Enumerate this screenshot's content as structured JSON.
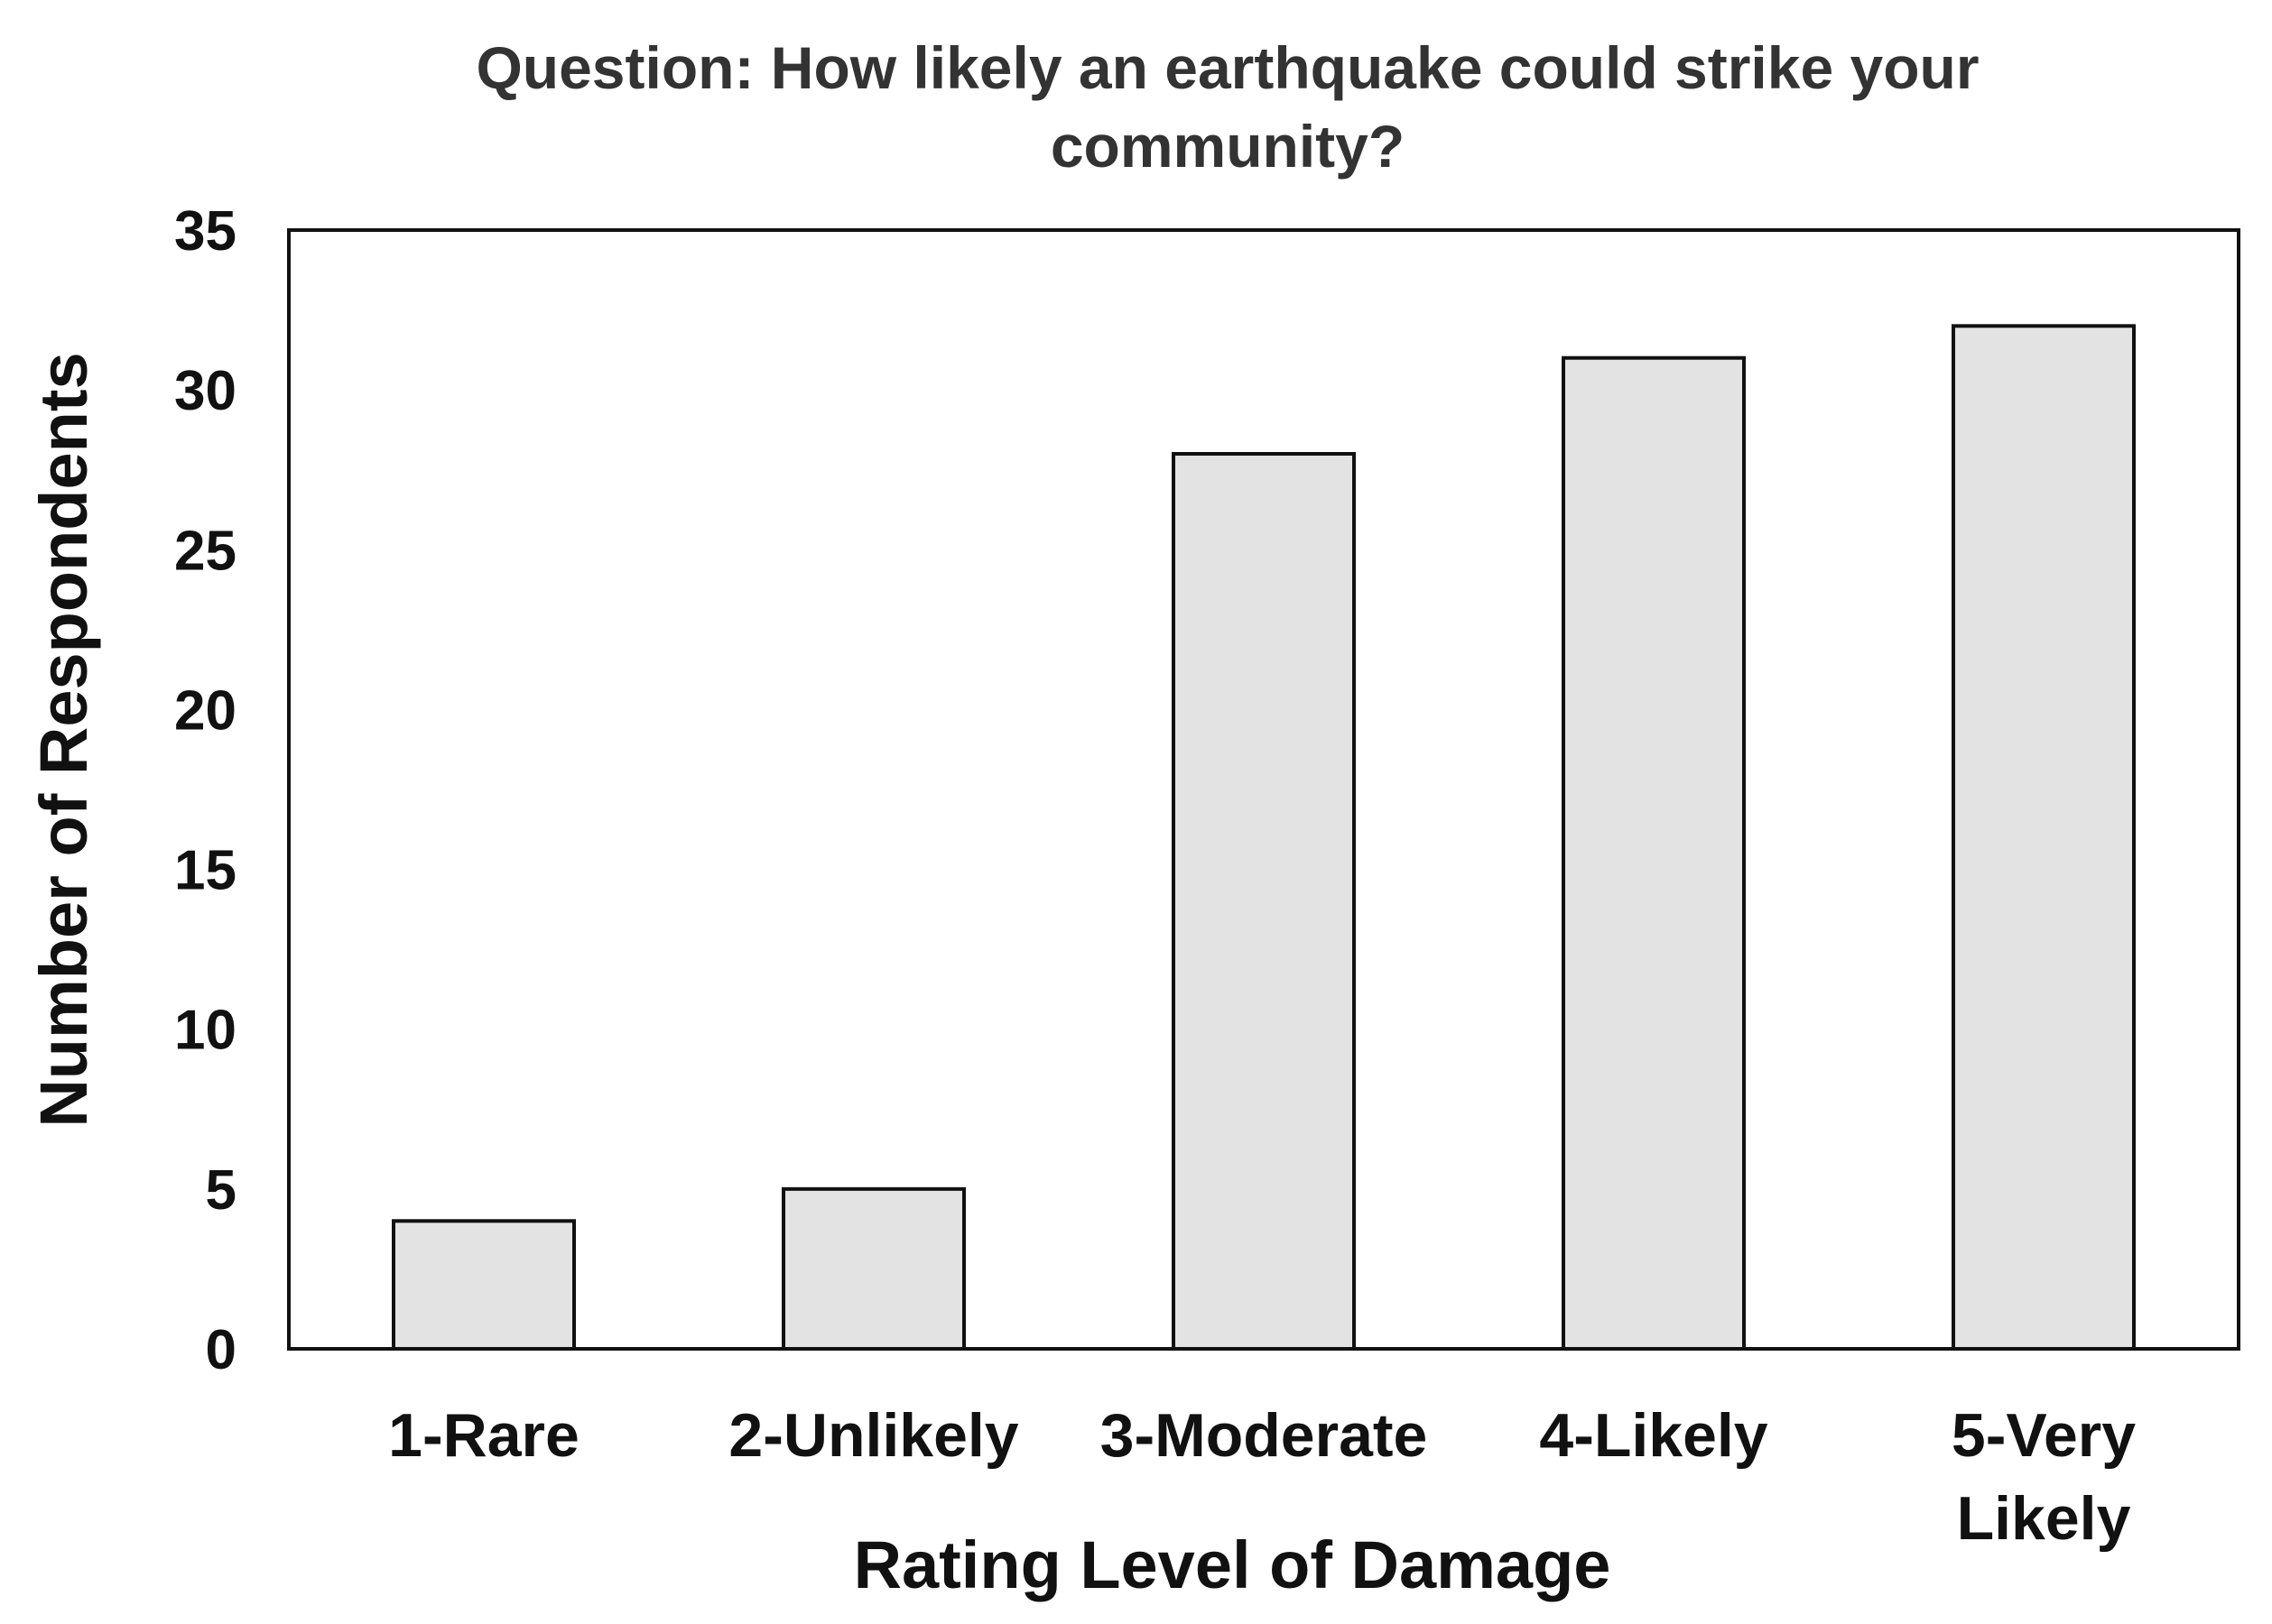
{
  "chart_data": {
    "type": "bar",
    "title": [
      "Question: How likely an earthquake could strike your",
      "community?"
    ],
    "xlabel": "Rating Level of Damage",
    "ylabel": "Number of Respondents",
    "categories": [
      [
        "1-Rare"
      ],
      [
        "2-Unlikely"
      ],
      [
        "3-Moderate"
      ],
      [
        "4-Likely"
      ],
      [
        "5-Very",
        "Likely"
      ]
    ],
    "values": [
      4,
      5,
      28,
      31,
      32
    ],
    "ylim": [
      0,
      35
    ],
    "yticks": [
      "0",
      "5",
      "10",
      "15",
      "20",
      "25",
      "30",
      "35"
    ],
    "grid": false,
    "legend": "none",
    "bar_color": "#e3e3e3",
    "bar_edge_color": "#111111"
  }
}
